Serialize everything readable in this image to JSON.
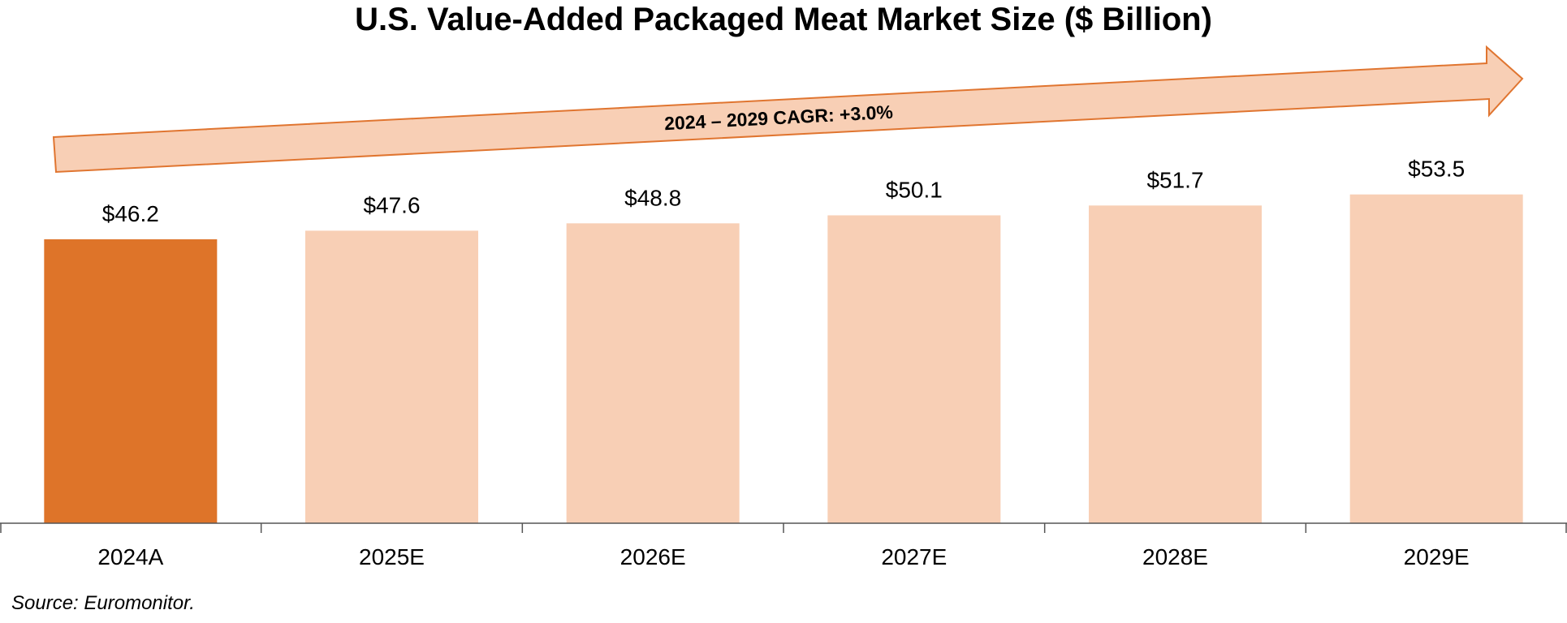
{
  "chart_data": {
    "type": "bar",
    "title": "U.S. Value-Added Packaged Meat Market Size ($ Billion)",
    "categories": [
      "2024A",
      "2025E",
      "2026E",
      "2027E",
      "2028E",
      "2029E"
    ],
    "values": [
      46.2,
      47.6,
      48.8,
      50.1,
      51.7,
      53.5
    ],
    "value_labels": [
      "$46.2",
      "$47.6",
      "$48.8",
      "$50.1",
      "$51.7",
      "$53.5"
    ],
    "ylim": [
      0,
      85
    ],
    "xlabel": "",
    "ylabel": "",
    "grid": false,
    "annotation": "2024 – 2029 CAGR: +3.0%",
    "colors": {
      "actual": "#DE7429",
      "estimate": "#F8CFB5",
      "arrow_fill": "#F8CFB5",
      "arrow_stroke": "#E07530"
    }
  },
  "source": "Source: Euromonitor."
}
